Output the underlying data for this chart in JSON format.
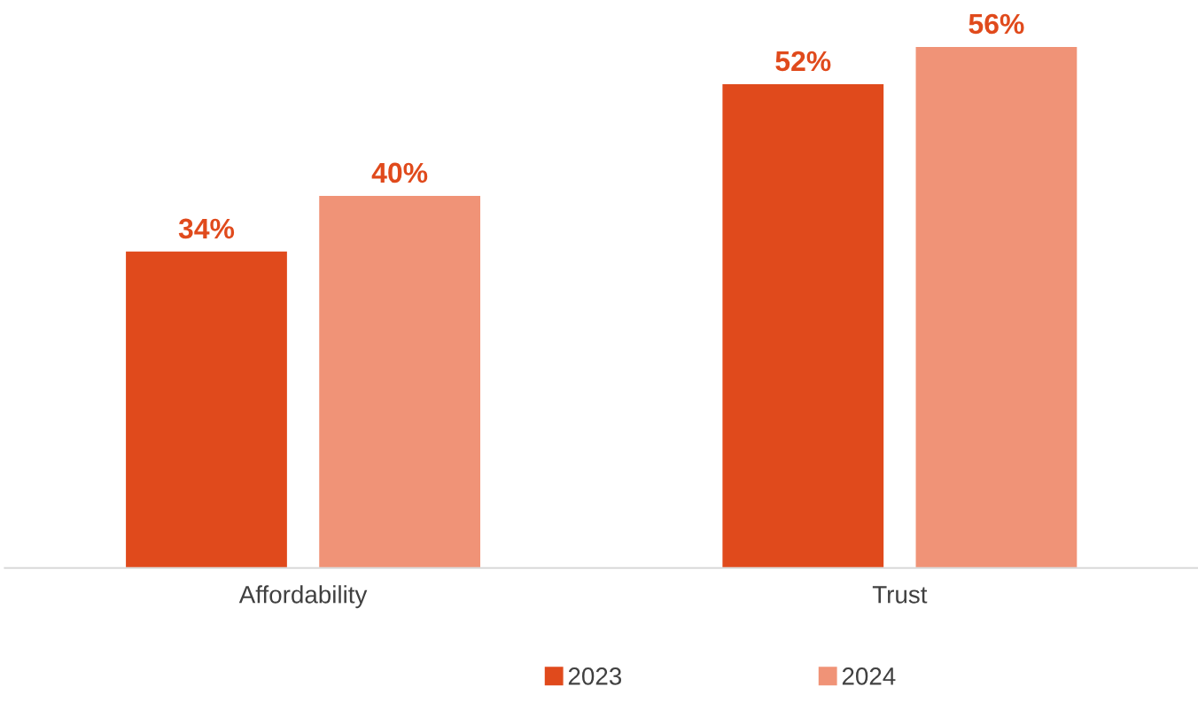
{
  "chart_data": {
    "type": "bar",
    "categories": [
      "Affordability",
      "Trust"
    ],
    "series": [
      {
        "name": "2023",
        "color": "#e04a1c",
        "values": [
          34,
          52
        ],
        "value_labels": [
          "34%",
          "52%"
        ]
      },
      {
        "name": "2024",
        "color": "#f09377",
        "values": [
          40,
          56
        ],
        "value_labels": [
          "40%",
          "56%"
        ]
      }
    ],
    "tick_labels": "x",
    "grid": false,
    "legend": "bottom"
  }
}
